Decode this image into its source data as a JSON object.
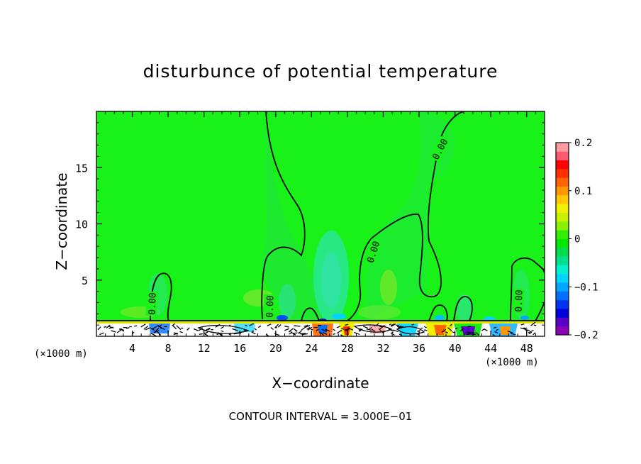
{
  "chart_data": {
    "type": "heatmap",
    "title": "disturbunce of potential temperature",
    "xlabel": "X−coordinate",
    "ylabel": "Z−coordinate",
    "x_unit": "(×1000 m)",
    "x_ticks": [
      "4",
      "8",
      "12",
      "16",
      "20",
      "24",
      "28",
      "32",
      "36",
      "40",
      "44",
      "48"
    ],
    "x_tick_values": [
      4,
      8,
      12,
      16,
      20,
      24,
      28,
      32,
      36,
      40,
      44,
      48
    ],
    "xlim": [
      0,
      50
    ],
    "y_ticks": [
      "5",
      "10",
      "15"
    ],
    "y_tick_values": [
      5,
      10,
      15
    ],
    "ylim": [
      0,
      20
    ],
    "footer": "CONTOUR INTERVAL = 3.000E−01",
    "contour_label": "0.00",
    "colorbar": {
      "range": [
        -0.2,
        0.2
      ],
      "tick_labels": [
        "0.2",
        "0.1",
        "0",
        "−0.1",
        "−0.2"
      ],
      "tick_values": [
        0.2,
        0.1,
        0,
        -0.1,
        -0.2
      ],
      "colors": [
        "#8e00b5",
        "#5a00c8",
        "#0000dc",
        "#0034f0",
        "#0070ff",
        "#00a8ff",
        "#00d4ff",
        "#00f0d0",
        "#00e090",
        "#00dc50",
        "#00e800",
        "#33ee00",
        "#88f000",
        "#c8f000",
        "#f0f000",
        "#ffc800",
        "#ff9600",
        "#ff6400",
        "#ff3000",
        "#ff0000",
        "#ff5a6e",
        "#ff9aa0"
      ]
    },
    "field_background_color": "#19f219"
  }
}
